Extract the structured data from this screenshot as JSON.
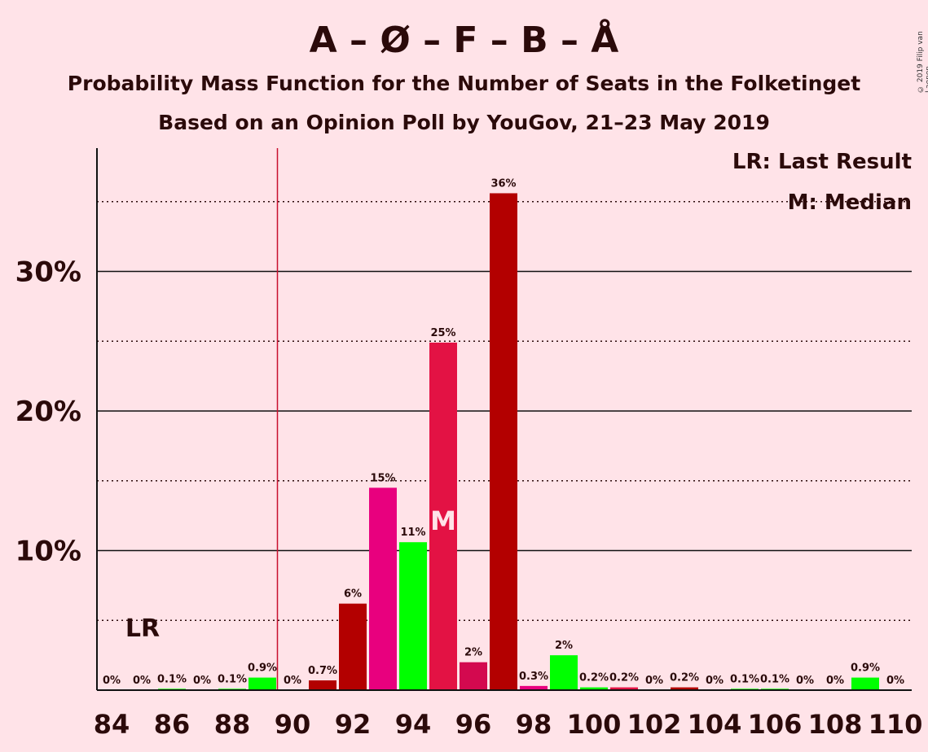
{
  "title": "A – Ø – F – B – Å",
  "subtitle": "Probability Mass Function for the Number of Seats in the Folketinget",
  "subtitle2": "Based on an Opinion Poll by YouGov, 21–23 May 2019",
  "copyright": "© 2019 Filip van Laenen",
  "legend": {
    "lr": "LR: Last Result",
    "median": "M: Median"
  },
  "markers": {
    "lr_label": "LR",
    "median_label": "M"
  },
  "colors": {
    "background": "#FFE3E8",
    "dark_red": "#B30000",
    "magenta": "#E8007E",
    "green": "#00FF00",
    "crimson": "#E31244",
    "raspberry": "#D3094F",
    "lr_line": "#C8102E"
  },
  "chart_data": {
    "type": "bar",
    "title": "A – Ø – F – B – Å",
    "xlabel": "",
    "ylabel": "",
    "ylim": [
      0,
      38
    ],
    "y_ticks": [
      {
        "value": 10,
        "label": "10%"
      },
      {
        "value": 20,
        "label": "20%"
      },
      {
        "value": 30,
        "label": "30%"
      }
    ],
    "dotted_lines": [
      5,
      15,
      25,
      35
    ],
    "x_ticks": [
      84,
      86,
      88,
      90,
      92,
      94,
      96,
      98,
      100,
      102,
      104,
      106,
      108,
      110
    ],
    "last_result": 89.5,
    "median": 95,
    "x": [
      84,
      85,
      86,
      87,
      88,
      89,
      90,
      91,
      92,
      93,
      94,
      95,
      96,
      97,
      98,
      99,
      100,
      101,
      102,
      103,
      104,
      105,
      106,
      107,
      108,
      109,
      110
    ],
    "values": [
      0,
      0,
      0.1,
      0,
      0.1,
      0.9,
      0,
      0.7,
      6.2,
      14.5,
      10.6,
      24.9,
      2.0,
      35.6,
      0.3,
      2.5,
      0.2,
      0.2,
      0,
      0.2,
      0,
      0.1,
      0.1,
      0,
      0,
      0.9,
      0
    ],
    "labels": [
      "0%",
      "0%",
      "0.1%",
      "0%",
      "0.1%",
      "0.9%",
      "0%",
      "0.7%",
      "6%",
      "15%",
      "11%",
      "25%",
      "2%",
      "36%",
      "0.3%",
      "2%",
      "0.2%",
      "0.2%",
      "0%",
      "0.2%",
      "0%",
      "0.1%",
      "0.1%",
      "0%",
      "0%",
      "0.9%",
      "0%"
    ],
    "bar_colors": [
      "#00FF00",
      "#00FF00",
      "#00FF00",
      "#00FF00",
      "#00FF00",
      "#00FF00",
      "#B30000",
      "#B30000",
      "#B30000",
      "#E8007E",
      "#00FF00",
      "#E31244",
      "#D3094F",
      "#B30000",
      "#E8007E",
      "#00FF00",
      "#00FF00",
      "#E31244",
      "#D3094F",
      "#B30000",
      "#E8007E",
      "#00FF00",
      "#00FF00",
      "#E31244",
      "#D3094F",
      "#00FF00",
      "#00FF00"
    ]
  }
}
